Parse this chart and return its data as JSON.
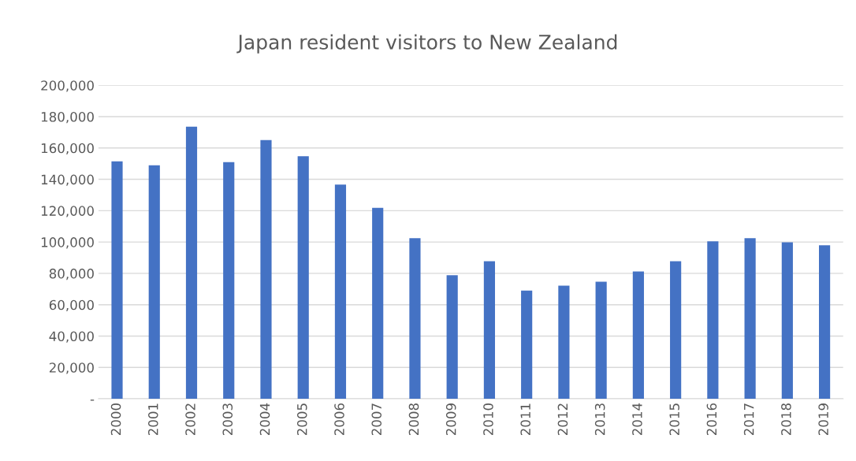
{
  "chart_data": {
    "type": "bar",
    "title": "Japan resident visitors to New Zealand",
    "categories": [
      "2000",
      "2001",
      "2002",
      "2003",
      "2004",
      "2005",
      "2006",
      "2007",
      "2008",
      "2009",
      "2010",
      "2011",
      "2012",
      "2013",
      "2014",
      "2015",
      "2016",
      "2017",
      "2018",
      "2019"
    ],
    "values": [
      151500,
      149000,
      173600,
      151000,
      165000,
      154800,
      136700,
      121800,
      102500,
      78800,
      87700,
      69000,
      72100,
      74700,
      81200,
      87700,
      100500,
      102400,
      99800,
      97900
    ],
    "color": "#4472c4",
    "ylim": [
      0,
      200000
    ],
    "yticks": [
      {
        "value": 0,
        "label": "-"
      },
      {
        "value": 20000,
        "label": "20,000"
      },
      {
        "value": 40000,
        "label": "40,000"
      },
      {
        "value": 60000,
        "label": "60,000"
      },
      {
        "value": 80000,
        "label": "80,000"
      },
      {
        "value": 100000,
        "label": "100,000"
      },
      {
        "value": 120000,
        "label": "120,000"
      },
      {
        "value": 140000,
        "label": "140,000"
      },
      {
        "value": 160000,
        "label": "160,000"
      },
      {
        "value": 180000,
        "label": "180,000"
      },
      {
        "value": 200000,
        "label": "200,000"
      }
    ],
    "grid": "y",
    "legend": false
  }
}
